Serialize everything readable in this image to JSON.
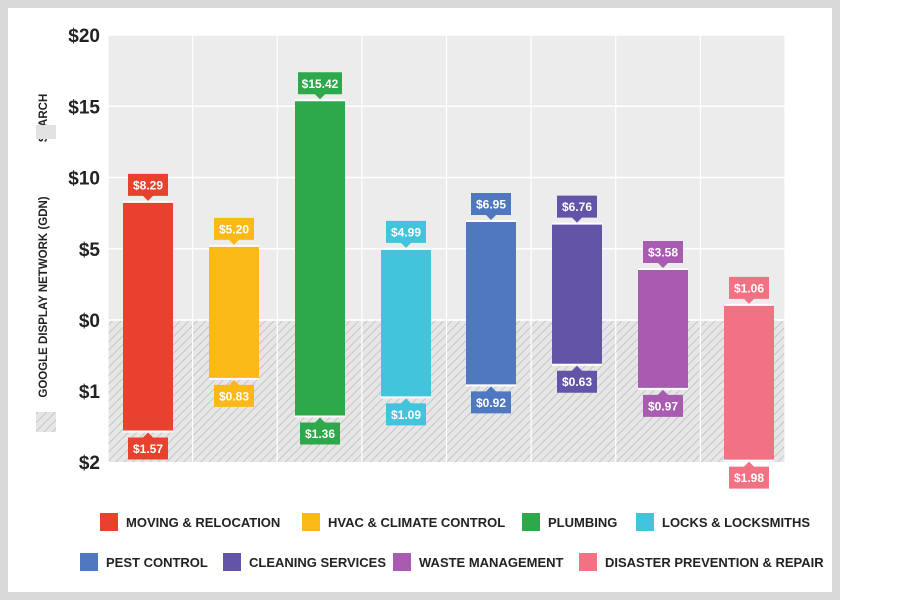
{
  "chart_data": {
    "type": "bar",
    "subtype": "diverging",
    "upper_axis_label": "SEARCH",
    "lower_axis_label": "GOOGLE DISPLAY NETWORK (GDN)",
    "upper_ticks": [
      "$20",
      "$15",
      "$10",
      "$5",
      "$0"
    ],
    "lower_ticks": [
      "$1",
      "$2"
    ],
    "upper_ylim": [
      0,
      20
    ],
    "lower_ylim": [
      0,
      2
    ],
    "categories": [
      "MOVING & RELOCATION",
      "HVAC & CLIMATE CONTROL",
      "PLUMBING",
      "LOCKS & LOCKSMITHS",
      "PEST CONTROL",
      "CLEANING SERVICES",
      "WASTE MANAGEMENT",
      "DISASTER PREVENTION & REPAIR"
    ],
    "colors": [
      "#e8422e",
      "#fbb918",
      "#2da84a",
      "#41c4dc",
      "#4f78c1",
      "#6454a8",
      "#a85bb0",
      "#f07283"
    ],
    "series": [
      {
        "name": "SEARCH",
        "values": [
          8.29,
          5.2,
          15.42,
          4.99,
          6.95,
          6.76,
          3.58,
          1.06
        ],
        "labels": [
          "$8.29",
          "$5.20",
          "$15.42",
          "$4.99",
          "$6.95",
          "$6.76",
          "$3.58",
          "$1.06"
        ]
      },
      {
        "name": "GOOGLE DISPLAY NETWORK (GDN)",
        "values": [
          1.57,
          0.83,
          1.36,
          1.09,
          0.92,
          0.63,
          0.97,
          1.98
        ],
        "labels": [
          "$1.57",
          "$0.83",
          "$1.36",
          "$1.09",
          "$0.92",
          "$0.63",
          "$0.97",
          "$1.98"
        ]
      }
    ],
    "grid": true,
    "legend_position": "bottom"
  }
}
